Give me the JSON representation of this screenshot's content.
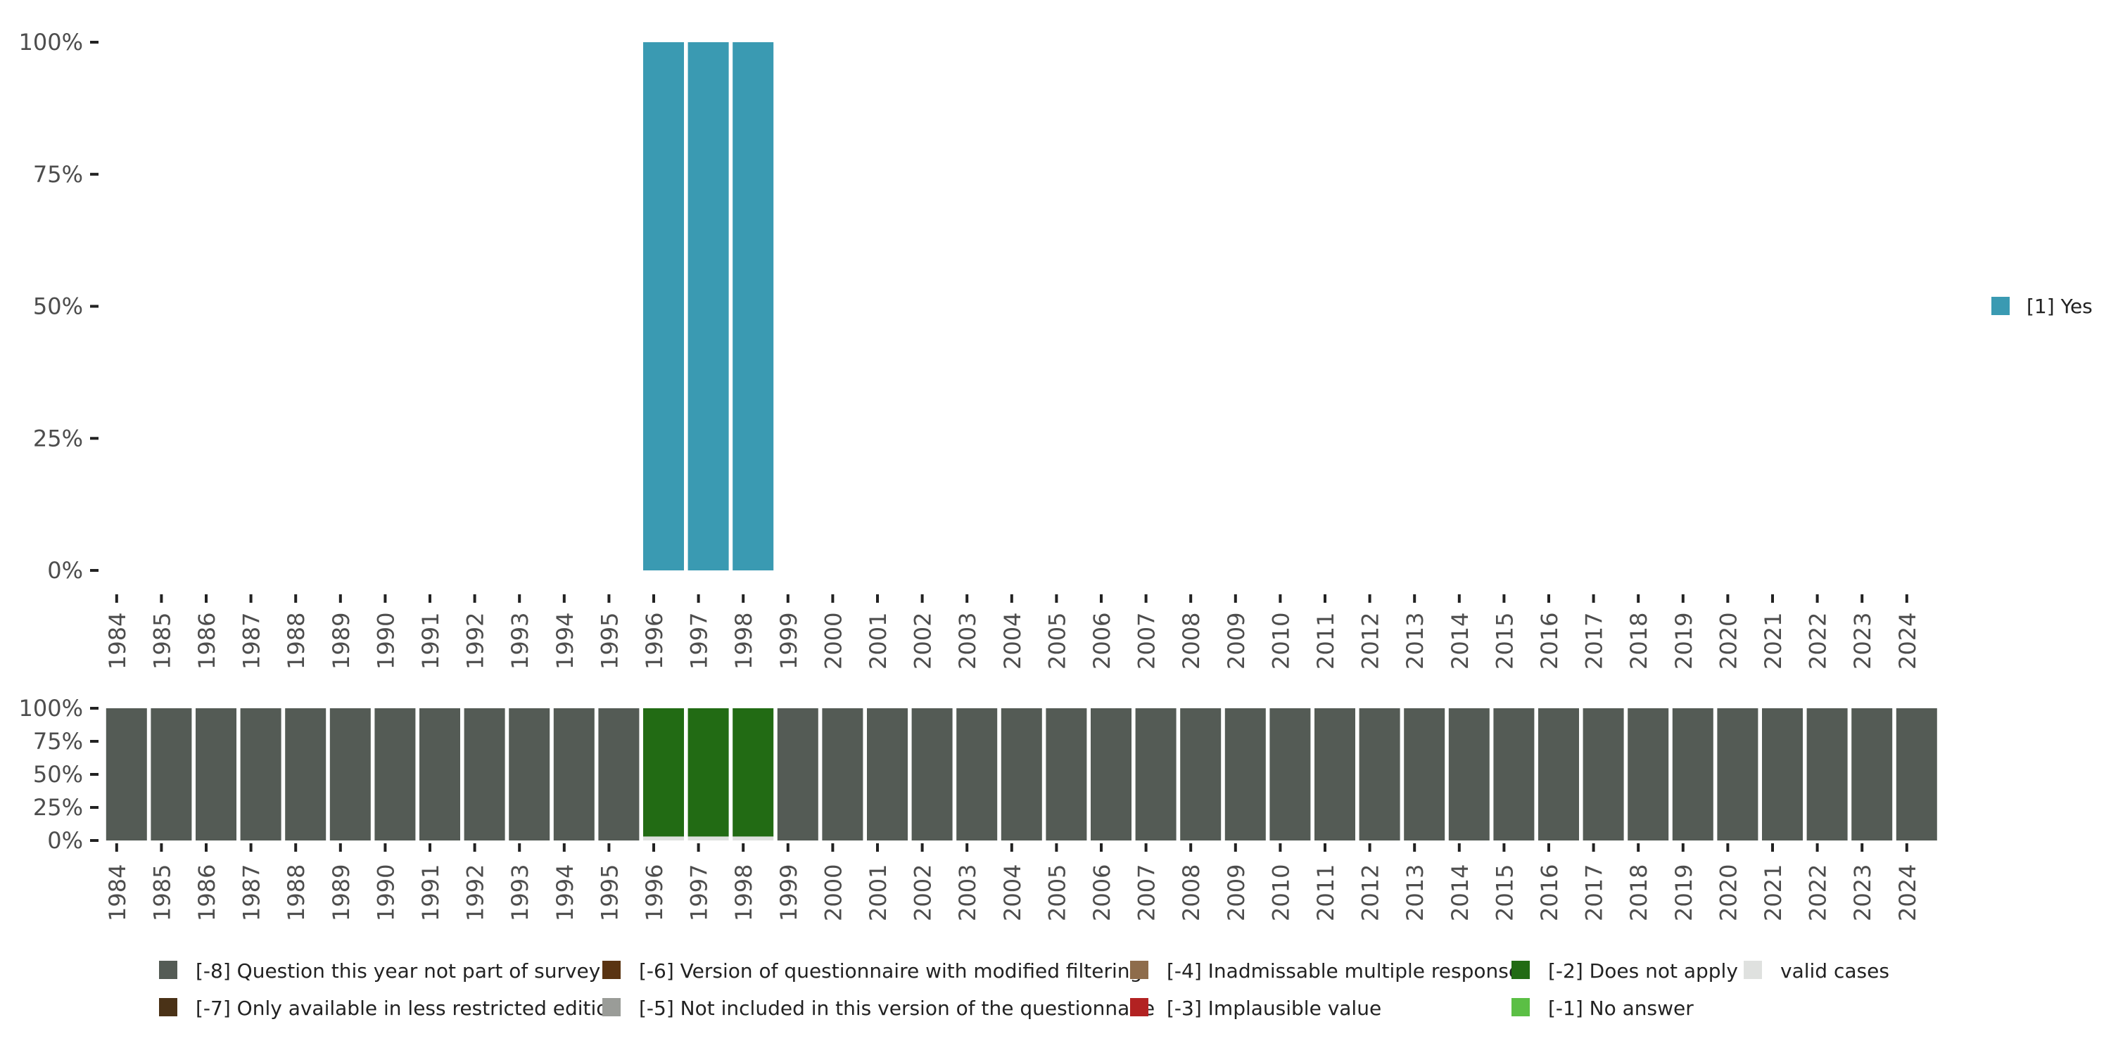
{
  "chart_data": [
    {
      "type": "bar",
      "stacked": true,
      "categories": [
        "1984",
        "1985",
        "1986",
        "1987",
        "1988",
        "1989",
        "1990",
        "1991",
        "1992",
        "1993",
        "1994",
        "1995",
        "1996",
        "1997",
        "1998",
        "1999",
        "2000",
        "2001",
        "2002",
        "2003",
        "2004",
        "2005",
        "2006",
        "2007",
        "2008",
        "2009",
        "2010",
        "2011",
        "2012",
        "2013",
        "2014",
        "2015",
        "2016",
        "2017",
        "2018",
        "2019",
        "2020",
        "2021",
        "2022",
        "2023",
        "2024"
      ],
      "yticks": [
        "0%",
        "25%",
        "50%",
        "75%",
        "100%"
      ],
      "ylim": [
        0,
        100
      ],
      "series": [
        {
          "name": "[1] Yes",
          "color": "#3a9ab2",
          "values": [
            0,
            0,
            0,
            0,
            0,
            0,
            0,
            0,
            0,
            0,
            0,
            0,
            100,
            100,
            100,
            0,
            0,
            0,
            0,
            0,
            0,
            0,
            0,
            0,
            0,
            0,
            0,
            0,
            0,
            0,
            0,
            0,
            0,
            0,
            0,
            0,
            0,
            0,
            0,
            0,
            0
          ]
        }
      ],
      "legend": {
        "position": "right",
        "items": [
          {
            "label": "[1] Yes",
            "color": "#3a9ab2"
          }
        ]
      }
    },
    {
      "type": "bar",
      "stacked": true,
      "categories": [
        "1984",
        "1985",
        "1986",
        "1987",
        "1988",
        "1989",
        "1990",
        "1991",
        "1992",
        "1993",
        "1994",
        "1995",
        "1996",
        "1997",
        "1998",
        "1999",
        "2000",
        "2001",
        "2002",
        "2003",
        "2004",
        "2005",
        "2006",
        "2007",
        "2008",
        "2009",
        "2010",
        "2011",
        "2012",
        "2013",
        "2014",
        "2015",
        "2016",
        "2017",
        "2018",
        "2019",
        "2020",
        "2021",
        "2022",
        "2023",
        "2024"
      ],
      "yticks": [
        "0%",
        "25%",
        "50%",
        "75%",
        "100%"
      ],
      "ylim": [
        0,
        100
      ],
      "series": [
        {
          "name": "valid cases",
          "color": "#dfe1df",
          "values": [
            0,
            0,
            0,
            0,
            0,
            0,
            0,
            0,
            0,
            0,
            0,
            0,
            3,
            3,
            3,
            0,
            0,
            0,
            0,
            0,
            0,
            0,
            0,
            0,
            0,
            0,
            0,
            0,
            0,
            0,
            0,
            0,
            0,
            0,
            0,
            0,
            0,
            0,
            0,
            0,
            0
          ]
        },
        {
          "name": "[-2] Does not apply",
          "color": "#226b14",
          "values": [
            0,
            0,
            0,
            0,
            0,
            0,
            0,
            0,
            0,
            0,
            0,
            0,
            97,
            97,
            97,
            0,
            0,
            0,
            0,
            0,
            0,
            0,
            0,
            0,
            0,
            0,
            0,
            0,
            0,
            0,
            0,
            0,
            0,
            0,
            0,
            0,
            0,
            0,
            0,
            0,
            0
          ]
        },
        {
          "name": "[-8] Question this year not part of survey",
          "color": "#545b55",
          "values": [
            100,
            100,
            100,
            100,
            100,
            100,
            100,
            100,
            100,
            100,
            100,
            100,
            0,
            0,
            0,
            100,
            100,
            100,
            100,
            100,
            100,
            100,
            100,
            100,
            100,
            100,
            100,
            100,
            100,
            100,
            100,
            100,
            100,
            100,
            100,
            100,
            100,
            100,
            100,
            100,
            100
          ]
        }
      ],
      "legend": {
        "position": "bottom",
        "items": [
          {
            "label": "[-8] Question this year not part of survey",
            "color": "#545b55"
          },
          {
            "label": "[-7] Only available in less restricted edition",
            "color": "#4a3217"
          },
          {
            "label": "[-6] Version of questionnaire with modified filtering",
            "color": "#5a3412"
          },
          {
            "label": "[-5] Not included in this version of the questionnaire",
            "color": "#9a9c98"
          },
          {
            "label": "[-4] Inadmissable multiple response",
            "color": "#8e6c4b"
          },
          {
            "label": "[-3] Implausible value",
            "color": "#b22222"
          },
          {
            "label": "[-2] Does not apply",
            "color": "#226b14"
          },
          {
            "label": "[-1] No answer",
            "color": "#5bbf45"
          },
          {
            "label": "valid cases",
            "color": "#dfe1df"
          }
        ]
      }
    }
  ]
}
